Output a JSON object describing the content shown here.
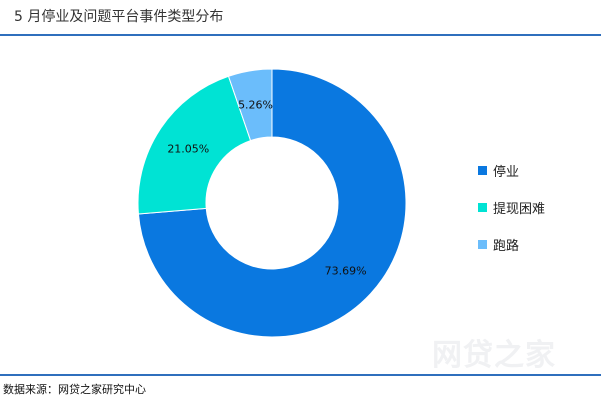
{
  "title": "5 月停业及问题平台事件类型分布",
  "source": "数据来源：网贷之家研究中心",
  "watermark": "网贷之家",
  "chart_data": {
    "type": "pie",
    "style": "donut",
    "title": "5 月停业及问题平台事件类型分布",
    "legend_position": "right",
    "slices": [
      {
        "label": "停业",
        "value": 73.69,
        "value_label": "73.69%",
        "color": "#0a78e0"
      },
      {
        "label": "提现困难",
        "value": 21.05,
        "value_label": "21.05%",
        "color": "#00e3d4"
      },
      {
        "label": "跑路",
        "value": 5.26,
        "value_label": "5.26%",
        "color": "#6bbdfb"
      }
    ]
  }
}
